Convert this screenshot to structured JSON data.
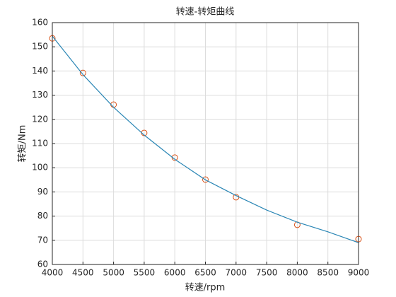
{
  "chart_data": {
    "type": "line",
    "title": "转速-转矩曲线",
    "xlabel": "转速/rpm",
    "ylabel": "转矩/Nm",
    "xlim": [
      4000,
      9000
    ],
    "xticks": [
      4000,
      4500,
      5000,
      5500,
      6000,
      6500,
      7000,
      7500,
      8000,
      8500,
      9000
    ],
    "ylim": [
      60,
      160
    ],
    "yticks": [
      60,
      70,
      80,
      90,
      100,
      110,
      120,
      130,
      140,
      150,
      160
    ],
    "grid": true,
    "series": [
      {
        "type": "scatter",
        "color": "#d95319",
        "x": [
          4000,
          4500,
          5000,
          5500,
          6000,
          6500,
          7000,
          8000,
          9000
        ],
        "values": [
          153.5,
          139.2,
          126.1,
          114.4,
          104.2,
          95.1,
          87.8,
          76.4,
          70.5
        ]
      },
      {
        "type": "line",
        "color": "#2a86b5",
        "x": [
          4000,
          4500,
          5000,
          5500,
          6000,
          6500,
          7000,
          7500,
          8000,
          8500,
          9000
        ],
        "values": [
          154.4,
          138.5,
          125,
          113.5,
          103.5,
          95,
          88.5,
          82.5,
          77.5,
          73.5,
          69
        ]
      }
    ]
  }
}
